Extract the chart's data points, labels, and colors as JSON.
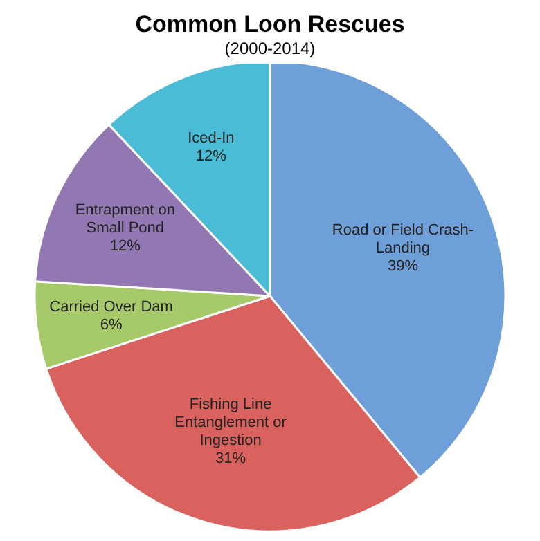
{
  "chart_data": {
    "type": "pie",
    "title": "Common Loon Rescues",
    "subtitle": "(2000-2014)",
    "categories": [
      "Road or Field Crash-Landing",
      "Fishing Line Entanglement or Ingestion",
      "Carried Over Dam",
      "Entrapment on Small Pond",
      "Iced-In"
    ],
    "values": [
      39,
      31,
      6,
      12,
      12
    ],
    "colors": [
      "#6f9fd8",
      "#d9625e",
      "#a6c96a",
      "#9178b2",
      "#4bbcd6"
    ],
    "value_labels": [
      "39%",
      "31%",
      "6%",
      "12%",
      "12%"
    ]
  }
}
